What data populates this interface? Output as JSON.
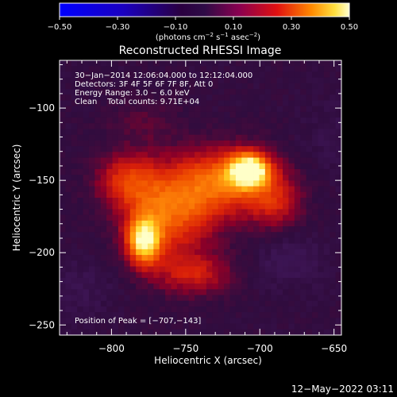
{
  "chart_data": {
    "type": "heatmap",
    "title": "Reconstructed RHESSI Image",
    "xlabel": "Heliocentric X (arcsec)",
    "ylabel": "Heliocentric Y (arcsec)",
    "xlim": [
      -835,
      -645
    ],
    "ylim": [
      -257,
      -67
    ],
    "x_ticks": [
      -800,
      -750,
      -700,
      -650
    ],
    "x_tick_labels": [
      "−800",
      "−750",
      "−700",
      "−650"
    ],
    "y_ticks": [
      -100,
      -150,
      -200,
      -250
    ],
    "y_tick_labels": [
      "−100",
      "−150",
      "−200",
      "−250"
    ],
    "colorbar": {
      "range": [
        -0.5,
        0.5
      ],
      "ticks": [
        -0.5,
        -0.3,
        -0.1,
        0.1,
        0.3,
        0.5
      ],
      "tick_labels": [
        "−0.50",
        "−0.30",
        "−0.10",
        "0.10",
        "0.30",
        "0.50"
      ],
      "unit_main": "(photons cm",
      "unit_exp1": "−2",
      "unit_mid": " s",
      "unit_exp2": "−1",
      "unit_mid2": " asec",
      "unit_exp3": "−2",
      "unit_end": ")"
    },
    "annotations": {
      "line1": "30−Jan−2014 12:06:04.000 to 12:12:04.000",
      "line2": "Detectors: 3F 4F 5F 6F 7F 8F, Att 0",
      "line3": "Energy Range: 3.0 − 6.0 keV",
      "line4": "Clean    Total counts: 9.71E+04",
      "peak": "Position of Peak = [−707,−143]"
    },
    "sources": [
      {
        "x": -707,
        "y": -143,
        "peak": 0.5
      },
      {
        "x": -778,
        "y": -192,
        "peak": 0.45
      }
    ]
  },
  "footer": {
    "date": "12−May−2022 03:11"
  }
}
